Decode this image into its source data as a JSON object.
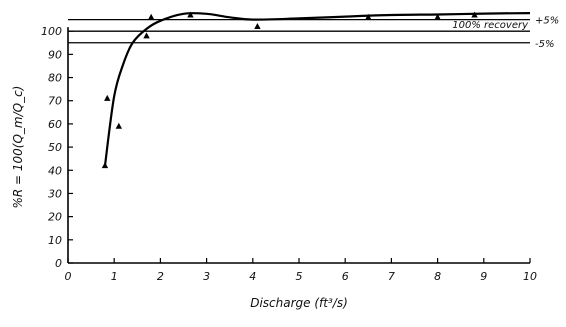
{
  "chart_data": {
    "type": "scatter",
    "title": "",
    "xlabel": "Discharge (ft³/s)",
    "ylabel": "%R = 100(Q_m/Q_c)",
    "xlim": [
      0,
      10
    ],
    "ylim": [
      0,
      110
    ],
    "x_ticks": [
      0,
      1,
      2,
      3,
      4,
      5,
      6,
      7,
      8,
      9,
      10
    ],
    "y_ticks": [
      0,
      10,
      20,
      30,
      40,
      50,
      60,
      70,
      80,
      90,
      100
    ],
    "grid": false,
    "reference_lines": [
      {
        "y": 100,
        "label": "100% recovery"
      },
      {
        "y": 105,
        "label": "+5%"
      },
      {
        "y": 95,
        "label": "-5%"
      }
    ],
    "points": [
      {
        "x": 0.8,
        "y": 42
      },
      {
        "x": 0.85,
        "y": 71
      },
      {
        "x": 1.1,
        "y": 59
      },
      {
        "x": 1.7,
        "y": 98
      },
      {
        "x": 1.8,
        "y": 106
      },
      {
        "x": 2.65,
        "y": 107
      },
      {
        "x": 4.1,
        "y": 102
      },
      {
        "x": 6.5,
        "y": 106
      },
      {
        "x": 8.0,
        "y": 106
      },
      {
        "x": 8.8,
        "y": 107
      }
    ],
    "fit_curve": [
      {
        "x": 0.8,
        "y": 42
      },
      {
        "x": 1.0,
        "y": 72
      },
      {
        "x": 1.2,
        "y": 86
      },
      {
        "x": 1.4,
        "y": 95
      },
      {
        "x": 1.7,
        "y": 101
      },
      {
        "x": 2.0,
        "y": 104.5
      },
      {
        "x": 2.5,
        "y": 107.5
      },
      {
        "x": 3.0,
        "y": 107.5
      },
      {
        "x": 3.5,
        "y": 106
      },
      {
        "x": 4.0,
        "y": 105
      },
      {
        "x": 5.0,
        "y": 105.5
      },
      {
        "x": 6.0,
        "y": 106.3
      },
      {
        "x": 7.0,
        "y": 107
      },
      {
        "x": 8.0,
        "y": 107.2
      },
      {
        "x": 9.0,
        "y": 107.6
      },
      {
        "x": 10.0,
        "y": 107.8
      }
    ]
  }
}
